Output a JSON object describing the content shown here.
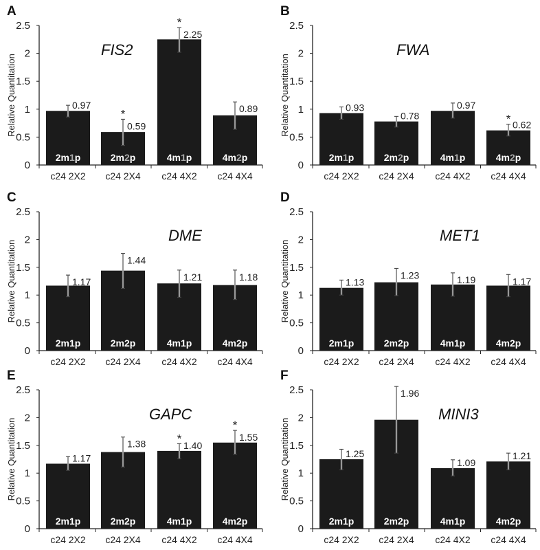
{
  "chart_data": [
    {
      "type": "bar",
      "panel": "A",
      "title": "FIS2",
      "ylabel": "Relative Quantitation",
      "ylim": [
        0,
        2.5
      ],
      "yticks": [
        "0",
        "0.5",
        "1",
        "1.5",
        "2",
        "2.5"
      ],
      "categories": [
        "c24 2X2",
        "c24 2X4",
        "c24 4X2",
        "c24 4X4"
      ],
      "values": [
        0.97,
        0.59,
        2.25,
        0.89
      ],
      "value_labels": [
        "0.97",
        "0.59",
        "2.25",
        "0.89"
      ],
      "error_low": [
        0.86,
        0.35,
        2.02,
        0.64
      ],
      "error_high": [
        1.07,
        0.82,
        2.46,
        1.13
      ],
      "significant": [
        false,
        true,
        true,
        false
      ],
      "significance_mark": "*",
      "bar_labels": [
        {
          "prefix": "2m",
          "highlight": "1",
          "suffix": "p",
          "highlight_grey": true
        },
        {
          "prefix": "2m",
          "highlight": "2",
          "suffix": "p",
          "highlight_grey": true
        },
        {
          "prefix": "4m",
          "highlight": "1",
          "suffix": "p",
          "highlight_grey": true
        },
        {
          "prefix": "4m",
          "highlight": "2",
          "suffix": "p",
          "highlight_grey": true
        }
      ]
    },
    {
      "type": "bar",
      "panel": "B",
      "title": "FWA",
      "ylabel": "Relative Quantitation",
      "ylim": [
        0,
        2.5
      ],
      "yticks": [
        "0",
        "0.5",
        "1",
        "1.5",
        "2",
        "2.5"
      ],
      "categories": [
        "c24 2X2",
        "c24 2X4",
        "c24 4X2",
        "c24 4X4"
      ],
      "values": [
        0.93,
        0.78,
        0.97,
        0.62
      ],
      "value_labels": [
        "0.93",
        "0.78",
        "0.97",
        "0.62"
      ],
      "error_low": [
        0.82,
        0.68,
        0.84,
        0.52
      ],
      "error_high": [
        1.04,
        0.87,
        1.11,
        0.73
      ],
      "significant": [
        false,
        false,
        false,
        true
      ],
      "significance_mark": "*",
      "bar_labels": [
        {
          "prefix": "2m",
          "highlight": "1",
          "suffix": "p",
          "highlight_grey": true
        },
        {
          "prefix": "2m",
          "highlight": "2",
          "suffix": "p",
          "highlight_grey": true
        },
        {
          "prefix": "4m",
          "highlight": "1",
          "suffix": "p",
          "highlight_grey": true
        },
        {
          "prefix": "4m",
          "highlight": "2",
          "suffix": "p",
          "highlight_grey": true
        }
      ]
    },
    {
      "type": "bar",
      "panel": "C",
      "title": "DME",
      "ylabel": "Relative Quantitation",
      "ylim": [
        0,
        2.5
      ],
      "yticks": [
        "0",
        "0.5",
        "1",
        "1.5",
        "2",
        "2.5"
      ],
      "categories": [
        "c24 2X2",
        "c24 2X4",
        "c24 4X2",
        "c24 4X4"
      ],
      "values": [
        1.17,
        1.44,
        1.21,
        1.18
      ],
      "value_labels": [
        "1.17",
        "1.44",
        "1.21",
        "1.18"
      ],
      "error_low": [
        0.97,
        1.12,
        0.96,
        0.92
      ],
      "error_high": [
        1.36,
        1.75,
        1.45,
        1.45
      ],
      "significant": [
        false,
        false,
        false,
        false
      ],
      "significance_mark": "*",
      "bar_labels": [
        {
          "prefix": "2m",
          "highlight": "1",
          "suffix": "p",
          "highlight_grey": false
        },
        {
          "prefix": "2m",
          "highlight": "2",
          "suffix": "p",
          "highlight_grey": false
        },
        {
          "prefix": "4m",
          "highlight": "1",
          "suffix": "p",
          "highlight_grey": false
        },
        {
          "prefix": "4m",
          "highlight": "2",
          "suffix": "p",
          "highlight_grey": false
        }
      ]
    },
    {
      "type": "bar",
      "panel": "D",
      "title": "MET1",
      "ylabel": "Relative Quantitation",
      "ylim": [
        0,
        2.5
      ],
      "yticks": [
        "0",
        "0.5",
        "1",
        "1.5",
        "2",
        "2.5"
      ],
      "categories": [
        "c24 2X2",
        "c24 2X4",
        "c24 4X2",
        "c24 4X4"
      ],
      "values": [
        1.13,
        1.23,
        1.19,
        1.17
      ],
      "value_labels": [
        "1.13",
        "1.23",
        "1.19",
        "1.17"
      ],
      "error_low": [
        1.0,
        0.99,
        0.98,
        0.97
      ],
      "error_high": [
        1.27,
        1.48,
        1.4,
        1.37
      ],
      "significant": [
        false,
        false,
        false,
        false
      ],
      "significance_mark": "*",
      "bar_labels": [
        {
          "prefix": "2m",
          "highlight": "1",
          "suffix": "p",
          "highlight_grey": false
        },
        {
          "prefix": "2m",
          "highlight": "2",
          "suffix": "p",
          "highlight_grey": false
        },
        {
          "prefix": "4m",
          "highlight": "1",
          "suffix": "p",
          "highlight_grey": false
        },
        {
          "prefix": "4m",
          "highlight": "2",
          "suffix": "p",
          "highlight_grey": false
        }
      ]
    },
    {
      "type": "bar",
      "panel": "E",
      "title": "GAPC",
      "ylabel": "Relative Quantitation",
      "ylim": [
        0,
        2.5
      ],
      "yticks": [
        "0",
        "0.5",
        "1",
        "1.5",
        "2",
        "2.5"
      ],
      "categories": [
        "c24 2X2",
        "c24 2X4",
        "c24 4X2",
        "c24 4X4"
      ],
      "values": [
        1.17,
        1.38,
        1.4,
        1.55
      ],
      "value_labels": [
        "1.17",
        "1.38",
        "1.40",
        "1.55"
      ],
      "error_low": [
        1.05,
        1.11,
        1.26,
        1.34
      ],
      "error_high": [
        1.3,
        1.65,
        1.53,
        1.77
      ],
      "significant": [
        false,
        false,
        true,
        true
      ],
      "significance_mark": "*",
      "bar_labels": [
        {
          "prefix": "2m",
          "highlight": "1",
          "suffix": "p",
          "highlight_grey": false
        },
        {
          "prefix": "2m",
          "highlight": "2",
          "suffix": "p",
          "highlight_grey": false
        },
        {
          "prefix": "4m",
          "highlight": "1",
          "suffix": "p",
          "highlight_grey": false
        },
        {
          "prefix": "4m",
          "highlight": "2",
          "suffix": "p",
          "highlight_grey": false
        }
      ]
    },
    {
      "type": "bar",
      "panel": "F",
      "title": "MINI3",
      "ylabel": "Relative Quantitation",
      "ylim": [
        0,
        2.5
      ],
      "yticks": [
        "0",
        "0.5",
        "1",
        "1.5",
        "2",
        "2.5"
      ],
      "categories": [
        "c24 2X2",
        "c24 2X4",
        "c24 4X2",
        "c24 4X4"
      ],
      "values": [
        1.25,
        1.96,
        1.09,
        1.21
      ],
      "value_labels": [
        "1.25",
        "1.96",
        "1.09",
        "1.21"
      ],
      "error_low": [
        1.06,
        1.36,
        0.95,
        1.06
      ],
      "error_high": [
        1.43,
        2.56,
        1.24,
        1.36
      ],
      "significant": [
        false,
        false,
        false,
        false
      ],
      "significance_mark": "*",
      "bar_labels": [
        {
          "prefix": "2m",
          "highlight": "1",
          "suffix": "p",
          "highlight_grey": false
        },
        {
          "prefix": "2m",
          "highlight": "2",
          "suffix": "p",
          "highlight_grey": false
        },
        {
          "prefix": "4m",
          "highlight": "1",
          "suffix": "p",
          "highlight_grey": false
        },
        {
          "prefix": "4m",
          "highlight": "2",
          "suffix": "p",
          "highlight_grey": false
        }
      ]
    }
  ],
  "colors": {
    "bar": "#1b1b1b",
    "axis": "#222222",
    "bar_label": "#ffffff",
    "bar_label_grey": "#aaaaaa"
  }
}
